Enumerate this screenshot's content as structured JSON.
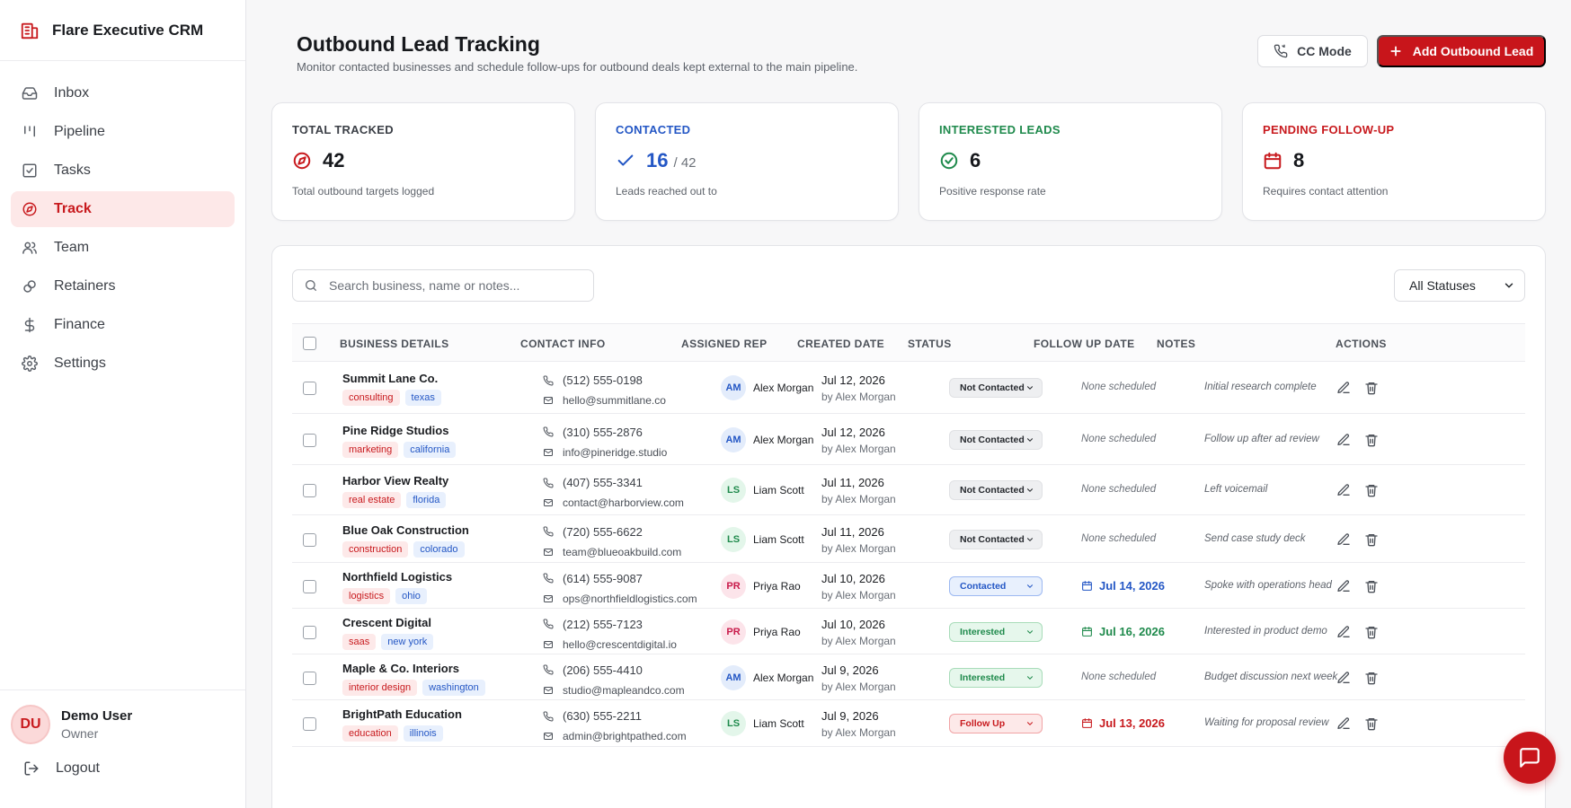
{
  "app": {
    "title": "Flare Executive CRM"
  },
  "sidebar": {
    "items": [
      {
        "label": "Inbox",
        "icon": "inbox-icon",
        "active": false
      },
      {
        "label": "Pipeline",
        "icon": "pipeline-icon",
        "active": false
      },
      {
        "label": "Tasks",
        "icon": "tasks-icon",
        "active": false
      },
      {
        "label": "Track",
        "icon": "compass-icon",
        "active": true
      },
      {
        "label": "Team",
        "icon": "team-icon",
        "active": false
      },
      {
        "label": "Retainers",
        "icon": "link-icon",
        "active": false
      },
      {
        "label": "Finance",
        "icon": "dollar-icon",
        "active": false
      },
      {
        "label": "Settings",
        "icon": "gear-icon",
        "active": false
      }
    ],
    "user": {
      "initials": "DU",
      "name": "Demo User",
      "role": "Owner"
    },
    "logout_label": "Logout"
  },
  "header": {
    "title": "Outbound Lead Tracking",
    "subtitle": "Monitor contacted businesses and schedule follow-ups for outbound deals kept external to the main pipeline.",
    "cc_mode_label": "CC Mode",
    "add_label": "Add Outbound Lead"
  },
  "stats": [
    {
      "label": "TOTAL TRACKED",
      "value": "42",
      "of": "",
      "desc": "Total outbound targets logged",
      "color": "#3b3f46",
      "value_color": "#16181c",
      "icon_color": "#c81a1e",
      "icon": "compass-icon"
    },
    {
      "label": "CONTACTED",
      "value": "16",
      "of": "/ 42",
      "desc": "Leads reached out to",
      "color": "#2457c5",
      "value_color": "#2457c5",
      "icon_color": "#2457c5",
      "icon": "check-icon"
    },
    {
      "label": "INTERESTED LEADS",
      "value": "6",
      "of": "",
      "desc": "Positive response rate",
      "color": "#1f8a4c",
      "value_color": "#16181c",
      "icon_color": "#1f8a4c",
      "icon": "check-circle-icon"
    },
    {
      "label": "PENDING FOLLOW-UP",
      "value": "8",
      "of": "",
      "desc": "Requires contact attention",
      "color": "#c81a1e",
      "value_color": "#16181c",
      "icon_color": "#c81a1e",
      "icon": "calendar-icon"
    }
  ],
  "filters": {
    "search_placeholder": "Search business, name or notes...",
    "status_selected": "All Statuses"
  },
  "table": {
    "columns": [
      "BUSINESS DETAILS",
      "CONTACT INFO",
      "ASSIGNED REP",
      "CREATED DATE",
      "STATUS",
      "FOLLOW UP DATE",
      "NOTES",
      "ACTIONS"
    ],
    "rows": [
      {
        "business": "Summit Lane Co.",
        "tags": [
          "consulting",
          "texas"
        ],
        "phone": "(512) 555-0198",
        "email": "hello@summitlane.co",
        "rep_initials": "AM",
        "rep": "Alex Morgan",
        "created": "Jul 12, 2026",
        "created_by": "by Alex Morgan",
        "status": "Not Contacted",
        "status_kind": "nc",
        "follow_up": "None scheduled",
        "follow_kind": "none",
        "notes": "Initial research complete"
      },
      {
        "business": "Pine Ridge Studios",
        "tags": [
          "marketing",
          "california"
        ],
        "phone": "(310) 555-2876",
        "email": "info@pineridge.studio",
        "rep_initials": "AM",
        "rep": "Alex Morgan",
        "created": "Jul 12, 2026",
        "created_by": "by Alex Morgan",
        "status": "Not Contacted",
        "status_kind": "nc",
        "follow_up": "None scheduled",
        "follow_kind": "none",
        "notes": "Follow up after ad review"
      },
      {
        "business": "Harbor View Realty",
        "tags": [
          "real estate",
          "florida"
        ],
        "phone": "(407) 555-3341",
        "email": "contact@harborview.com",
        "rep_initials": "LS",
        "rep": "Liam Scott",
        "created": "Jul 11, 2026",
        "created_by": "by Alex Morgan",
        "status": "Not Contacted",
        "status_kind": "nc",
        "follow_up": "None scheduled",
        "follow_kind": "none",
        "notes": "Left voicemail"
      },
      {
        "business": "Blue Oak Construction",
        "tags": [
          "construction",
          "colorado"
        ],
        "phone": "(720) 555-6622",
        "email": "team@blueoakbuild.com",
        "rep_initials": "LS",
        "rep": "Liam Scott",
        "created": "Jul 11, 2026",
        "created_by": "by Alex Morgan",
        "status": "Not Contacted",
        "status_kind": "nc",
        "follow_up": "None scheduled",
        "follow_kind": "none",
        "notes": "Send case study deck"
      },
      {
        "business": "Northfield Logistics",
        "tags": [
          "logistics",
          "ohio"
        ],
        "phone": "(614) 555-9087",
        "email": "ops@northfieldlogistics.com",
        "rep_initials": "PR",
        "rep": "Priya Rao",
        "created": "Jul 10, 2026",
        "created_by": "by Alex Morgan",
        "status": "Contacted",
        "status_kind": "ct",
        "follow_up": "Jul 14, 2026",
        "follow_kind": "blue",
        "notes": "Spoke with operations head"
      },
      {
        "business": "Crescent Digital",
        "tags": [
          "saas",
          "new york"
        ],
        "phone": "(212) 555-7123",
        "email": "hello@crescentdigital.io",
        "rep_initials": "PR",
        "rep": "Priya Rao",
        "created": "Jul 10, 2026",
        "created_by": "by Alex Morgan",
        "status": "Interested",
        "status_kind": "in",
        "follow_up": "Jul 16, 2026",
        "follow_kind": "green",
        "notes": "Interested in product demo"
      },
      {
        "business": "Maple & Co. Interiors",
        "tags": [
          "interior design",
          "washington"
        ],
        "phone": "(206) 555-4410",
        "email": "studio@mapleandco.com",
        "rep_initials": "AM",
        "rep": "Alex Morgan",
        "created": "Jul 9, 2026",
        "created_by": "by Alex Morgan",
        "status": "Interested",
        "status_kind": "in",
        "follow_up": "None scheduled",
        "follow_kind": "none",
        "notes": "Budget discussion next week"
      },
      {
        "business": "BrightPath Education",
        "tags": [
          "education",
          "illinois"
        ],
        "phone": "(630) 555-2211",
        "email": "admin@brightpathed.com",
        "rep_initials": "LS",
        "rep": "Liam Scott",
        "created": "Jul 9, 2026",
        "created_by": "by Alex Morgan",
        "status": "Follow Up",
        "status_kind": "fu",
        "follow_up": "Jul 13, 2026",
        "follow_kind": "red",
        "notes": "Waiting for proposal review"
      }
    ]
  }
}
